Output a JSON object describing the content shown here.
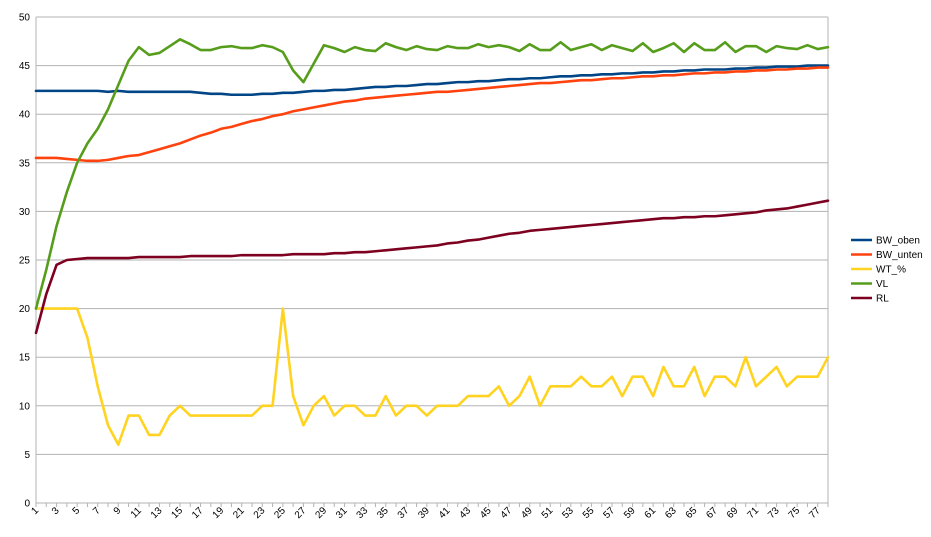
{
  "chart_data": {
    "type": "line",
    "title": "",
    "xlabel": "",
    "ylabel": "",
    "x": [
      1,
      2,
      3,
      4,
      5,
      6,
      7,
      8,
      9,
      10,
      11,
      12,
      13,
      14,
      15,
      16,
      17,
      18,
      19,
      20,
      21,
      22,
      23,
      24,
      25,
      26,
      27,
      28,
      29,
      30,
      31,
      32,
      33,
      34,
      35,
      36,
      37,
      38,
      39,
      40,
      41,
      42,
      43,
      44,
      45,
      46,
      47,
      48,
      49,
      50,
      51,
      52,
      53,
      54,
      55,
      56,
      57,
      58,
      59,
      60,
      61,
      62,
      63,
      64,
      65,
      66,
      67,
      68,
      69,
      70,
      71,
      72,
      73,
      74,
      75,
      76,
      77,
      78
    ],
    "xtick_labels": [
      "1",
      "3",
      "5",
      "7",
      "9",
      "11",
      "13",
      "15",
      "17",
      "19",
      "21",
      "23",
      "25",
      "27",
      "29",
      "31",
      "33",
      "35",
      "37",
      "39",
      "41",
      "43",
      "45",
      "47",
      "49",
      "51",
      "53",
      "55",
      "57",
      "59",
      "61",
      "63",
      "65",
      "67",
      "69",
      "71",
      "73",
      "75",
      "77"
    ],
    "ylim": [
      0,
      50
    ],
    "yticks": [
      0,
      5,
      10,
      15,
      20,
      25,
      30,
      35,
      40,
      45,
      50
    ],
    "grid": true,
    "legend_position": "right",
    "series": [
      {
        "name": "BW_oben",
        "color": "#004586",
        "values": [
          42.4,
          42.4,
          42.4,
          42.4,
          42.4,
          42.4,
          42.4,
          42.3,
          42.4,
          42.3,
          42.3,
          42.3,
          42.3,
          42.3,
          42.3,
          42.3,
          42.2,
          42.1,
          42.1,
          42.0,
          42.0,
          42.0,
          42.1,
          42.1,
          42.2,
          42.2,
          42.3,
          42.4,
          42.4,
          42.5,
          42.5,
          42.6,
          42.7,
          42.8,
          42.8,
          42.9,
          42.9,
          43.0,
          43.1,
          43.1,
          43.2,
          43.3,
          43.3,
          43.4,
          43.4,
          43.5,
          43.6,
          43.6,
          43.7,
          43.7,
          43.8,
          43.9,
          43.9,
          44.0,
          44.0,
          44.1,
          44.1,
          44.2,
          44.2,
          44.3,
          44.3,
          44.4,
          44.4,
          44.5,
          44.5,
          44.6,
          44.6,
          44.6,
          44.7,
          44.7,
          44.8,
          44.8,
          44.9,
          44.9,
          44.9,
          45.0,
          45.0,
          45.0
        ]
      },
      {
        "name": "BW_unten",
        "color": "#ff420e",
        "values": [
          35.5,
          35.5,
          35.5,
          35.4,
          35.3,
          35.2,
          35.2,
          35.3,
          35.5,
          35.7,
          35.8,
          36.1,
          36.4,
          36.7,
          37.0,
          37.4,
          37.8,
          38.1,
          38.5,
          38.7,
          39.0,
          39.3,
          39.5,
          39.8,
          40.0,
          40.3,
          40.5,
          40.7,
          40.9,
          41.1,
          41.3,
          41.4,
          41.6,
          41.7,
          41.8,
          41.9,
          42.0,
          42.1,
          42.2,
          42.3,
          42.3,
          42.4,
          42.5,
          42.6,
          42.7,
          42.8,
          42.9,
          43.0,
          43.1,
          43.2,
          43.2,
          43.3,
          43.4,
          43.5,
          43.5,
          43.6,
          43.7,
          43.7,
          43.8,
          43.9,
          43.9,
          44.0,
          44.0,
          44.1,
          44.2,
          44.2,
          44.3,
          44.3,
          44.4,
          44.4,
          44.5,
          44.5,
          44.6,
          44.6,
          44.7,
          44.7,
          44.8,
          44.8
        ]
      },
      {
        "name": "WT_%",
        "color": "#ffd320",
        "values": [
          20,
          20,
          20,
          20,
          20,
          17,
          12,
          8,
          6,
          9,
          9,
          7,
          7,
          9,
          10,
          9,
          9,
          9,
          9,
          9,
          9,
          9,
          10,
          10,
          20,
          11,
          8,
          10,
          11,
          9,
          10,
          10,
          9,
          9,
          11,
          9,
          10,
          10,
          9,
          10,
          10,
          10,
          11,
          11,
          11,
          12,
          10,
          11,
          13,
          10,
          12,
          12,
          12,
          13,
          12,
          12,
          13,
          11,
          13,
          13,
          11,
          14,
          12,
          12,
          14,
          11,
          13,
          13,
          12,
          15,
          12,
          13,
          14,
          12,
          13,
          13,
          13,
          15
        ]
      },
      {
        "name": "VL",
        "color": "#579d1c",
        "values": [
          20,
          24,
          28.5,
          32,
          35,
          37,
          38.5,
          40.5,
          43,
          45.5,
          46.9,
          46.1,
          46.3,
          47,
          47.7,
          47.2,
          46.6,
          46.6,
          46.9,
          47,
          46.8,
          46.8,
          47.1,
          46.9,
          46.4,
          44.5,
          43.3,
          45.2,
          47.1,
          46.8,
          46.4,
          46.9,
          46.6,
          46.5,
          47.3,
          46.9,
          46.6,
          47.0,
          46.7,
          46.6,
          47.0,
          46.8,
          46.8,
          47.2,
          46.9,
          47.1,
          46.9,
          46.5,
          47.2,
          46.6,
          46.6,
          47.4,
          46.6,
          46.9,
          47.2,
          46.6,
          47.1,
          46.8,
          46.5,
          47.3,
          46.4,
          46.8,
          47.3,
          46.4,
          47.3,
          46.6,
          46.6,
          47.4,
          46.4,
          47.0,
          47.0,
          46.4,
          47.0,
          46.8,
          46.7,
          47.1,
          46.7,
          46.9
        ]
      },
      {
        "name": "RL",
        "color": "#7e0021",
        "values": [
          17.5,
          21.5,
          24.5,
          25.0,
          25.1,
          25.2,
          25.2,
          25.2,
          25.2,
          25.2,
          25.3,
          25.3,
          25.3,
          25.3,
          25.3,
          25.4,
          25.4,
          25.4,
          25.4,
          25.4,
          25.5,
          25.5,
          25.5,
          25.5,
          25.5,
          25.6,
          25.6,
          25.6,
          25.6,
          25.7,
          25.7,
          25.8,
          25.8,
          25.9,
          26.0,
          26.1,
          26.2,
          26.3,
          26.4,
          26.5,
          26.7,
          26.8,
          27.0,
          27.1,
          27.3,
          27.5,
          27.7,
          27.8,
          28.0,
          28.1,
          28.2,
          28.3,
          28.4,
          28.5,
          28.6,
          28.7,
          28.8,
          28.9,
          29.0,
          29.1,
          29.2,
          29.3,
          29.3,
          29.4,
          29.4,
          29.5,
          29.5,
          29.6,
          29.7,
          29.8,
          29.9,
          30.1,
          30.2,
          30.3,
          30.5,
          30.7,
          30.9,
          31.1
        ]
      }
    ]
  }
}
